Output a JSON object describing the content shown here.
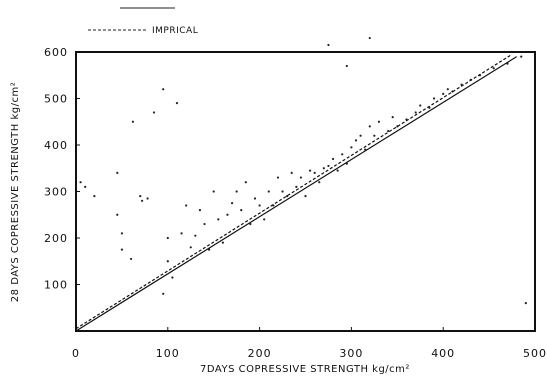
{
  "chart_data": {
    "type": "scatter",
    "title": "",
    "xlabel": "7DAYS COPRESSIVE STRENGTH kg/cm²",
    "ylabel": "28 DAYS COPRESSIVE STRENGTH kg/cm²",
    "xlim": [
      0,
      500
    ],
    "ylim": [
      0,
      600
    ],
    "xticks": [
      "0",
      "100",
      "200",
      "300",
      "400",
      "500"
    ],
    "yticks": [
      "100",
      "200",
      "300",
      "400",
      "500",
      "600"
    ],
    "grid": false,
    "legend_position": "top-left (above plot)",
    "legend": [
      {
        "label": "",
        "style": "solid"
      },
      {
        "label": "IMPRICAL",
        "style": "dashed"
      }
    ],
    "series": [
      {
        "type": "scatter",
        "points": [
          [
            5,
            320
          ],
          [
            10,
            310
          ],
          [
            20,
            290
          ],
          [
            45,
            340
          ],
          [
            45,
            250
          ],
          [
            50,
            210
          ],
          [
            50,
            175
          ],
          [
            60,
            155
          ],
          [
            62,
            450
          ],
          [
            70,
            290
          ],
          [
            72,
            280
          ],
          [
            78,
            285
          ],
          [
            85,
            470
          ],
          [
            95,
            520
          ],
          [
            100,
            200
          ],
          [
            100,
            150
          ],
          [
            105,
            115
          ],
          [
            110,
            490
          ],
          [
            115,
            210
          ],
          [
            120,
            270
          ],
          [
            125,
            180
          ],
          [
            130,
            205
          ],
          [
            135,
            260
          ],
          [
            140,
            230
          ],
          [
            145,
            175
          ],
          [
            150,
            300
          ],
          [
            155,
            240
          ],
          [
            160,
            190
          ],
          [
            165,
            250
          ],
          [
            170,
            275
          ],
          [
            175,
            300
          ],
          [
            180,
            260
          ],
          [
            185,
            320
          ],
          [
            190,
            230
          ],
          [
            195,
            285
          ],
          [
            200,
            270
          ],
          [
            205,
            240
          ],
          [
            210,
            300
          ],
          [
            215,
            270
          ],
          [
            220,
            330
          ],
          [
            225,
            300
          ],
          [
            230,
            290
          ],
          [
            235,
            340
          ],
          [
            240,
            310
          ],
          [
            245,
            330
          ],
          [
            250,
            290
          ],
          [
            255,
            345
          ],
          [
            260,
            340
          ],
          [
            265,
            320
          ],
          [
            270,
            350
          ],
          [
            275,
            355
          ],
          [
            280,
            370
          ],
          [
            285,
            345
          ],
          [
            290,
            380
          ],
          [
            295,
            360
          ],
          [
            300,
            395
          ],
          [
            305,
            410
          ],
          [
            310,
            420
          ],
          [
            315,
            390
          ],
          [
            320,
            440
          ],
          [
            325,
            420
          ],
          [
            330,
            450
          ],
          [
            340,
            430
          ],
          [
            345,
            460
          ],
          [
            350,
            440
          ],
          [
            360,
            455
          ],
          [
            370,
            470
          ],
          [
            375,
            485
          ],
          [
            385,
            480
          ],
          [
            390,
            500
          ],
          [
            400,
            510
          ],
          [
            405,
            520
          ],
          [
            410,
            515
          ],
          [
            420,
            530
          ],
          [
            430,
            540
          ],
          [
            440,
            550
          ],
          [
            455,
            565
          ],
          [
            470,
            575
          ],
          [
            485,
            590
          ],
          [
            490,
            60
          ],
          [
            95,
            80
          ],
          [
            275,
            615
          ],
          [
            320,
            630
          ],
          [
            295,
            570
          ]
        ]
      },
      {
        "type": "line",
        "style": "solid",
        "points": [
          [
            0,
            0
          ],
          [
            480,
            590
          ]
        ]
      },
      {
        "type": "line",
        "style": "dashed",
        "name": "IMPRICAL",
        "points": [
          [
            0,
            5
          ],
          [
            475,
            595
          ]
        ]
      }
    ]
  }
}
